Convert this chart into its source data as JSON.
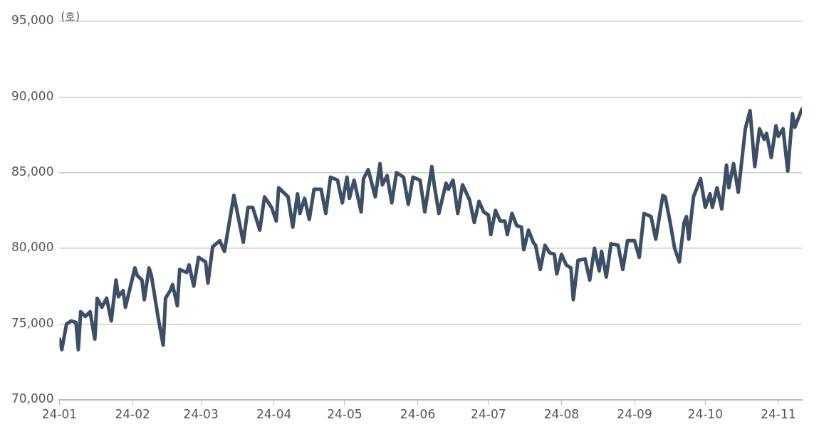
{
  "chart_data": {
    "type": "line",
    "ylabel": "(호)",
    "x": [
      "--01-01",
      "--01-02",
      "--01-04",
      "--01-06",
      "--01-08",
      "--01-09",
      "--01-10",
      "--01-12",
      "--01-14",
      "--01-16",
      "--01-17",
      "--01-19",
      "--01-21",
      "--01-23",
      "--01-25",
      "--01-26",
      "--01-28",
      "--01-29",
      "--02-02",
      "--02-03",
      "--02-05",
      "--02-06",
      "--02-08",
      "--02-09",
      "--02-12",
      "--02-14",
      "--02-15",
      "--02-17",
      "--02-18",
      "--02-20",
      "--02-21",
      "--02-24",
      "--02-25",
      "--02-27",
      "--02-29",
      "--03-03",
      "--03-04",
      "--03-06",
      "--03-09",
      "--03-11",
      "--03-15",
      "--03-19",
      "--03-21",
      "--03-23",
      "--03-26",
      "--03-28",
      "--03-31",
      "--04-02",
      "--04-03",
      "--04-07",
      "--04-09",
      "--04-11",
      "--04-12",
      "--04-14",
      "--04-16",
      "--04-18",
      "--04-21",
      "--04-23",
      "--04-25",
      "--04-28",
      "--04-30",
      "--05-02",
      "--05-03",
      "--05-05",
      "--05-08",
      "--05-09",
      "--05-11",
      "--05-14",
      "--05-16",
      "--05-17",
      "--05-19",
      "--05-21",
      "--05-23",
      "--05-26",
      "--05-28",
      "--05-30",
      "--06-02",
      "--06-04",
      "--06-07",
      "--06-08",
      "--06-10",
      "--06-13",
      "--06-14",
      "--06-16",
      "--06-18",
      "--06-20",
      "--06-23",
      "--06-25",
      "--06-27",
      "--06-29",
      "--07-01",
      "--07-02",
      "--07-04",
      "--07-06",
      "--07-08",
      "--07-09",
      "--07-11",
      "--07-13",
      "--07-15",
      "--07-16",
      "--07-18",
      "--07-20",
      "--07-21",
      "--07-23",
      "--07-25",
      "--07-27",
      "--07-29",
      "--07-30",
      "--08-01",
      "--08-03",
      "--08-05",
      "--08-06",
      "--08-08",
      "--08-11",
      "--08-13",
      "--08-15",
      "--08-17",
      "--08-18",
      "--08-20",
      "--08-22",
      "--08-25",
      "--08-27",
      "--08-29",
      "--09-01",
      "--09-03",
      "--09-05",
      "--09-08",
      "--09-10",
      "--09-13",
      "--09-14",
      "--09-16",
      "--09-18",
      "--09-20",
      "--09-22",
      "--09-23",
      "--09-24",
      "--09-26",
      "--09-29",
      "--10-01",
      "--10-03",
      "--10-04",
      "--10-06",
      "--10-08",
      "--10-10",
      "--10-11",
      "--10-13",
      "--10-15",
      "--10-18",
      "--10-20",
      "--10-22",
      "--10-24",
      "--10-26",
      "--10-27",
      "--10-29",
      "--10-31",
      "--11-01",
      "--11-03",
      "--11-05",
      "--11-07",
      "--11-08",
      "--11-11"
    ],
    "series": [
      {
        "color": "#3d4f66",
        "values": [
          74000,
          73300,
          75000,
          75200,
          75100,
          73300,
          75800,
          75500,
          75800,
          74000,
          76700,
          76100,
          76700,
          75200,
          77900,
          76800,
          77200,
          76100,
          78700,
          78200,
          77900,
          76600,
          78700,
          78200,
          75300,
          73600,
          76700,
          77200,
          77600,
          76200,
          78600,
          78400,
          78900,
          77500,
          79400,
          79100,
          77700,
          80100,
          80500,
          79800,
          83500,
          80400,
          82700,
          82700,
          81200,
          83400,
          82700,
          81800,
          84000,
          83400,
          81400,
          83600,
          82300,
          83300,
          81900,
          83900,
          83900,
          82300,
          84700,
          84500,
          83000,
          84700,
          83300,
          84500,
          82400,
          84600,
          85200,
          83400,
          85600,
          84200,
          84800,
          83000,
          85000,
          84700,
          82900,
          84700,
          84500,
          82400,
          85400,
          84200,
          82300,
          84300,
          83900,
          84500,
          82300,
          84200,
          83200,
          81700,
          83100,
          82400,
          82200,
          80900,
          82500,
          81800,
          81800,
          80900,
          82300,
          81500,
          81400,
          79900,
          81200,
          80400,
          80200,
          78600,
          80200,
          79700,
          79600,
          78300,
          79600,
          78900,
          78700,
          76600,
          79200,
          79300,
          77900,
          80000,
          78500,
          79800,
          78100,
          80300,
          80200,
          78600,
          80500,
          80500,
          79400,
          82300,
          82100,
          80600,
          83500,
          83400,
          81800,
          80000,
          79100,
          81700,
          82100,
          80600,
          83400,
          84600,
          82700,
          83600,
          82700,
          84000,
          82600,
          85500,
          84000,
          85600,
          83700,
          87900,
          89100,
          85400,
          87900,
          87200,
          87600,
          86000,
          88100,
          87400,
          87900,
          85100,
          88900,
          88000,
          89200
        ]
      }
    ],
    "xlim": [
      "--01-01",
      "--11-11"
    ],
    "xticks": [
      {
        "value": "--01-01",
        "label": "24-01"
      },
      {
        "value": "--02-01",
        "label": "24-02"
      },
      {
        "value": "--03-01",
        "label": "24-03"
      },
      {
        "value": "--04-01",
        "label": "24-04"
      },
      {
        "value": "--05-01",
        "label": "24-05"
      },
      {
        "value": "--06-01",
        "label": "24-06"
      },
      {
        "value": "--07-01",
        "label": "24-07"
      },
      {
        "value": "--08-01",
        "label": "24-08"
      },
      {
        "value": "--09-01",
        "label": "24-09"
      },
      {
        "value": "--10-01",
        "label": "24-10"
      },
      {
        "value": "--11-01",
        "label": "24-11"
      }
    ],
    "ylim": [
      70000,
      95000
    ],
    "yticks": [
      {
        "value": 70000,
        "label": "70,000"
      },
      {
        "value": 75000,
        "label": "75,000"
      },
      {
        "value": 80000,
        "label": "80,000"
      },
      {
        "value": 85000,
        "label": "85,000"
      },
      {
        "value": 90000,
        "label": "90,000"
      },
      {
        "value": 95000,
        "label": "95,000"
      }
    ],
    "grid": "y",
    "legend": false,
    "marker": "none",
    "line_style": "solid"
  }
}
